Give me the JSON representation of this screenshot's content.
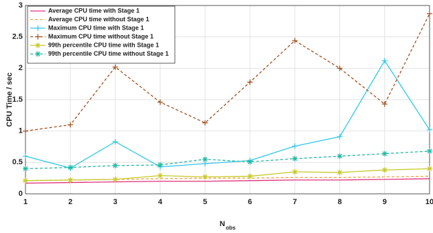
{
  "chart_data": {
    "type": "line",
    "ylabel": "CPU Time / sec",
    "xlabel": "N",
    "xlabel_subscript": "obs",
    "x": [
      1,
      2,
      3,
      4,
      5,
      6,
      7,
      8,
      9,
      10
    ],
    "xlim": [
      1,
      10
    ],
    "xticks": [
      1,
      2,
      3,
      4,
      5,
      6,
      7,
      8,
      9,
      10
    ],
    "ylim": [
      0,
      3
    ],
    "yticks": [
      0,
      0.5,
      1,
      1.5,
      2,
      2.5,
      3
    ],
    "grid": true,
    "legend": "upper left",
    "series": [
      {
        "name": "Average CPU time with Stage 1",
        "color": "#e0307a",
        "dash": false,
        "marker": "none",
        "values": [
          0.17,
          0.18,
          0.19,
          0.2,
          0.2,
          0.21,
          0.22,
          0.22,
          0.23,
          0.24
        ]
      },
      {
        "name": "Average CPU time without Stage 1",
        "color": "#f0a040",
        "dash": true,
        "marker": "none",
        "values": [
          0.21,
          0.22,
          0.23,
          0.24,
          0.25,
          0.25,
          0.26,
          0.26,
          0.27,
          0.28
        ]
      },
      {
        "name": "Maximum CPU time with Stage 1",
        "color": "#30c8e8",
        "dash": false,
        "marker": "+",
        "values": [
          0.6,
          0.41,
          0.83,
          0.43,
          0.48,
          0.53,
          0.76,
          0.91,
          2.12,
          1.02
        ]
      },
      {
        "name": "Maximum CPU time without Stage 1",
        "color": "#a0501e",
        "dash": true,
        "marker": "+",
        "values": [
          1.0,
          1.1,
          2.02,
          1.46,
          1.13,
          1.78,
          2.44,
          2.0,
          1.43,
          2.87
        ]
      },
      {
        "name": "99th percentile CPU time with Stage 1",
        "color": "#c8c828",
        "dash": false,
        "marker": "*",
        "values": [
          0.21,
          0.22,
          0.23,
          0.29,
          0.27,
          0.28,
          0.35,
          0.34,
          0.38,
          0.4
        ]
      },
      {
        "name": "99th percentile CPU time without Stage 1",
        "color": "#20b8a0",
        "dash": true,
        "marker": "*",
        "values": [
          0.4,
          0.42,
          0.45,
          0.46,
          0.55,
          0.51,
          0.56,
          0.6,
          0.64,
          0.68
        ]
      }
    ]
  }
}
